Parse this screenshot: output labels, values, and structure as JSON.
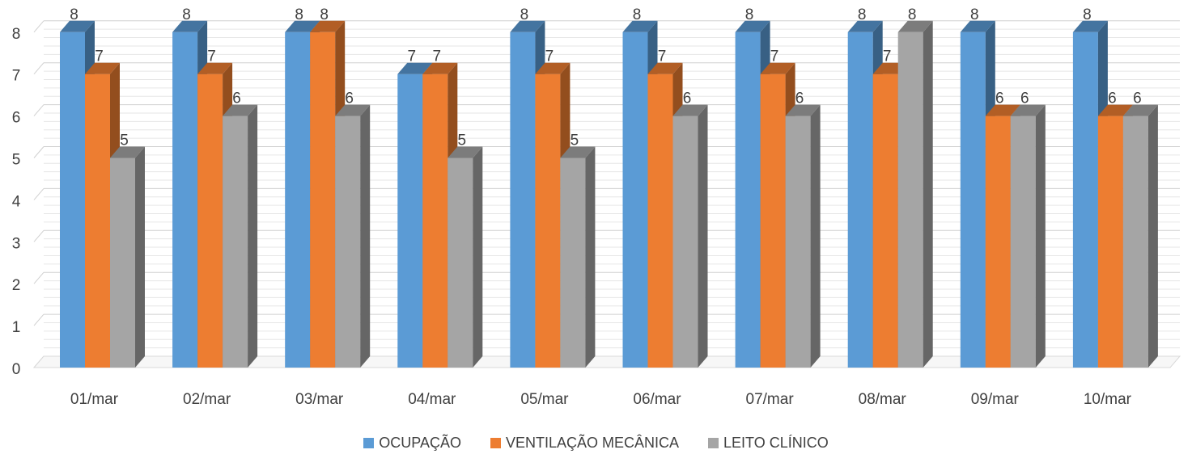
{
  "chart_data": {
    "type": "bar",
    "style": "3d-clustered-column",
    "categories": [
      "01/mar",
      "02/mar",
      "03/mar",
      "04/mar",
      "05/mar",
      "06/mar",
      "07/mar",
      "08/mar",
      "09/mar",
      "10/mar"
    ],
    "series": [
      {
        "name": "OCUPAÇÃO",
        "color": "#5B9BD5",
        "values": [
          8,
          8,
          8,
          7,
          8,
          8,
          8,
          8,
          8,
          8
        ]
      },
      {
        "name": "VENTILAÇÃO MECÂNICA",
        "color": "#ED7D31",
        "values": [
          7,
          7,
          8,
          7,
          7,
          7,
          7,
          7,
          6,
          6
        ]
      },
      {
        "name": "LEITO CLÍNICO",
        "color": "#A5A5A5",
        "values": [
          5,
          6,
          6,
          5,
          5,
          6,
          6,
          8,
          6,
          6
        ]
      }
    ],
    "y_ticks": [
      0,
      1,
      2,
      3,
      4,
      5,
      6,
      7,
      8
    ],
    "ylim": [
      0,
      8
    ],
    "grid": true,
    "data_labels": true,
    "legend_position": "bottom",
    "title": "",
    "xlabel": "",
    "ylabel": ""
  }
}
